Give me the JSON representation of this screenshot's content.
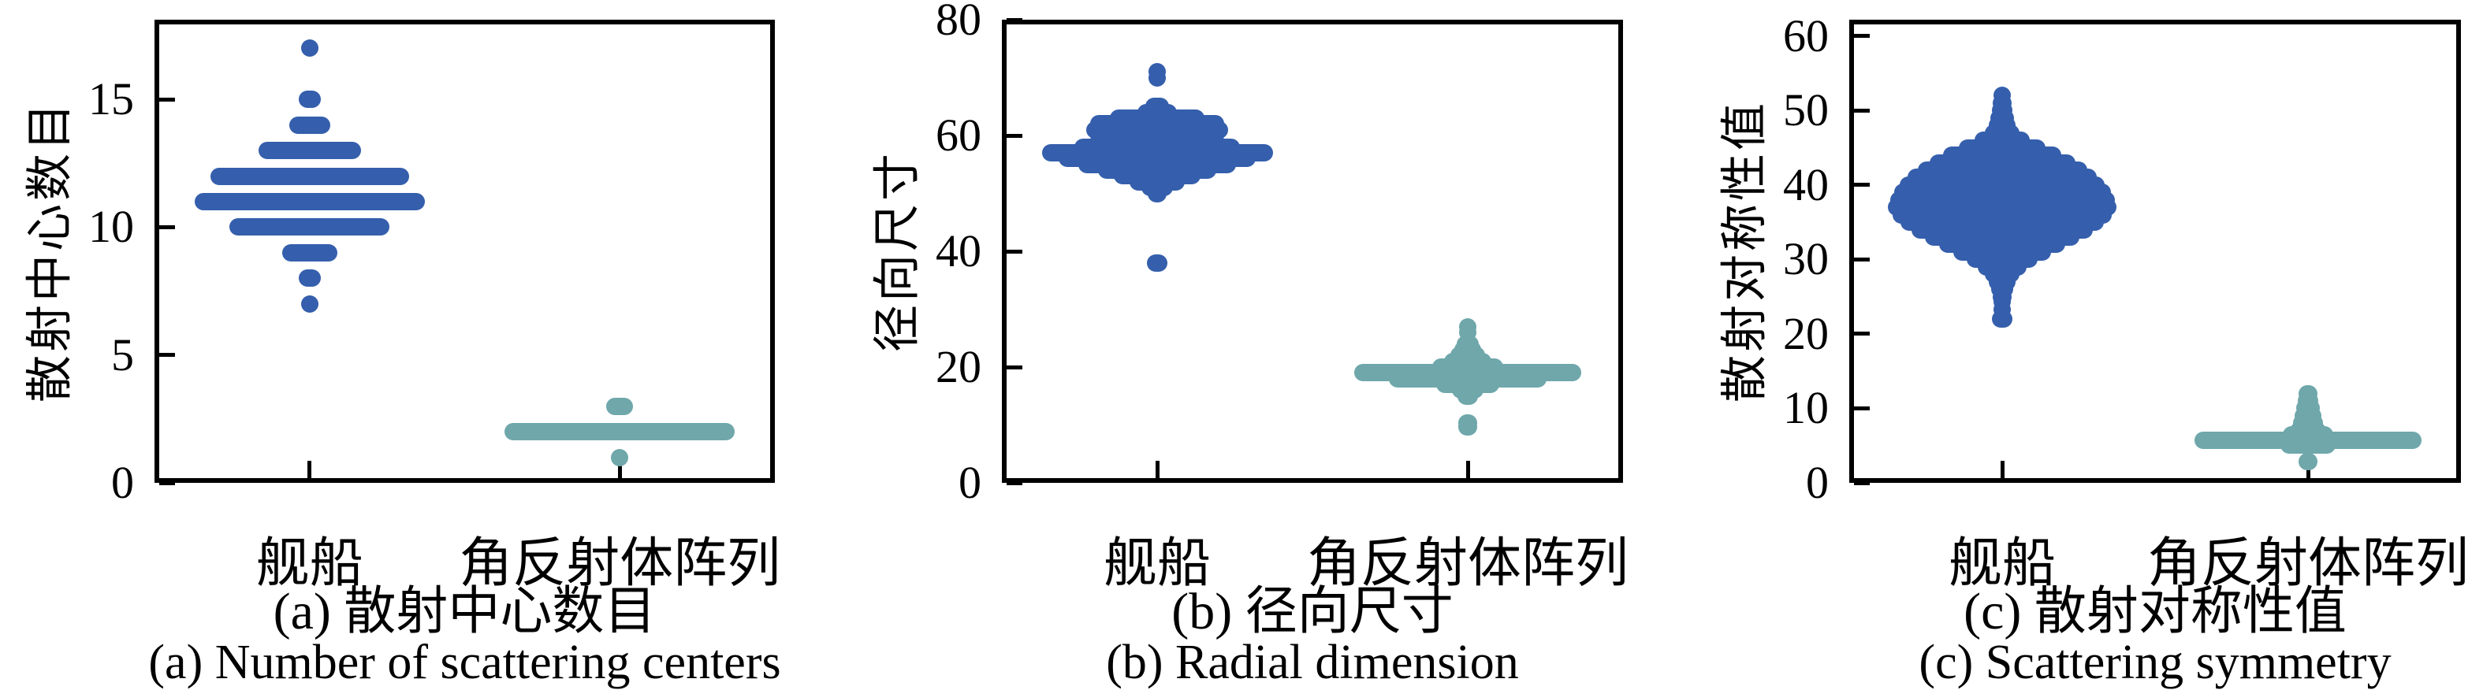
{
  "figure": {
    "background": "#ffffff",
    "axis_color": "#000000",
    "palette": {
      "ship_blue": "#355FAC",
      "reflector_teal": "#6FA7AB"
    }
  },
  "chart_data": [
    {
      "type": "swarm",
      "panel_label": "a",
      "title": "",
      "ylabel": "散射中心数目",
      "xlabel": "",
      "yticks": [
        0,
        5,
        10,
        15
      ],
      "ylim": [
        0,
        18.12
      ],
      "grid": false,
      "legend": "none",
      "categories": [
        "舰船",
        "角反射体阵列"
      ],
      "caption_zh": "(a) 散射中心数目",
      "caption_en": "(a) Number of scattering centers",
      "series": [
        {
          "name": "舰船",
          "color": "#355FAC",
          "note": "discrete integer counts; profile = [value, rendered_row_width_px]",
          "profile": [
            [
              17,
              22
            ],
            [
              15,
              28
            ],
            [
              14,
              52
            ],
            [
              13,
              130
            ],
            [
              12,
              252
            ],
            [
              11,
              292
            ],
            [
              10,
              203
            ],
            [
              9,
              70
            ],
            [
              8,
              28
            ],
            [
              7,
              22
            ]
          ]
        },
        {
          "name": "角反射体阵列",
          "color": "#6FA7AB",
          "profile": [
            [
              3,
              34
            ],
            [
              2,
              292
            ],
            [
              1,
              22
            ]
          ]
        }
      ]
    },
    {
      "type": "swarm",
      "panel_label": "b",
      "title": "",
      "ylabel": "径向尺寸",
      "xlabel": "",
      "yticks": [
        0,
        20,
        40,
        60,
        80
      ],
      "ylim": [
        0,
        80
      ],
      "grid": false,
      "legend": "none",
      "categories": [
        "舰船",
        "角反射体阵列"
      ],
      "caption_zh": "(b) 径向尺寸",
      "caption_en": "(b) Radial dimension",
      "series": [
        {
          "name": "舰船",
          "color": "#355FAC",
          "profile": [
            [
              71,
              22
            ],
            [
              70,
              22
            ],
            [
              65,
              30
            ],
            [
              64,
              50
            ],
            [
              63,
              120
            ],
            [
              62,
              170
            ],
            [
              61,
              180
            ],
            [
              60,
              170
            ],
            [
              59,
              150
            ],
            [
              58,
              210
            ],
            [
              57,
              293
            ],
            [
              56,
              250
            ],
            [
              55,
              200
            ],
            [
              54,
              150
            ],
            [
              53,
              110
            ],
            [
              52,
              70
            ],
            [
              51,
              40
            ],
            [
              50,
              24
            ],
            [
              38,
              26
            ]
          ]
        },
        {
          "name": "角反射体阵列",
          "color": "#6FA7AB",
          "profile": [
            [
              27,
              22
            ],
            [
              26,
              22
            ],
            [
              24,
              28
            ],
            [
              23,
              34
            ],
            [
              22,
              44
            ],
            [
              21,
              60
            ],
            [
              20,
              90
            ],
            [
              19,
              288
            ],
            [
              18,
              200
            ],
            [
              17,
              80
            ],
            [
              16,
              40
            ],
            [
              15,
              26
            ],
            [
              10.3,
              24
            ],
            [
              9.7,
              24
            ]
          ]
        }
      ]
    },
    {
      "type": "swarm",
      "panel_label": "c",
      "title": "",
      "ylabel": "散射对称性值",
      "xlabel": "",
      "yticks": [
        0,
        10,
        20,
        30,
        40,
        50,
        60
      ],
      "ylim": [
        0,
        62.2
      ],
      "grid": false,
      "legend": "none",
      "categories": [
        "舰船",
        "角反射体阵列"
      ],
      "caption_zh": "(c) 散射对称性值",
      "caption_en": "(c) Scattering symmetry",
      "series": [
        {
          "name": "舰船",
          "color": "#355FAC",
          "profile": [
            [
              52,
              22
            ],
            [
              51,
              24
            ],
            [
              50,
              26
            ],
            [
              49,
              30
            ],
            [
              48,
              34
            ],
            [
              47,
              44
            ],
            [
              46,
              70
            ],
            [
              45,
              110
            ],
            [
              44,
              150
            ],
            [
              43,
              185
            ],
            [
              42,
              215
            ],
            [
              41,
              240
            ],
            [
              40,
              260
            ],
            [
              39,
              275
            ],
            [
              38,
              285
            ],
            [
              37,
              290
            ],
            [
              36,
              278
            ],
            [
              35,
              258
            ],
            [
              34,
              230
            ],
            [
              33,
              196
            ],
            [
              32,
              160
            ],
            [
              31,
              124
            ],
            [
              30,
              90
            ],
            [
              29,
              62
            ],
            [
              28,
              44
            ],
            [
              27,
              34
            ],
            [
              26,
              28
            ],
            [
              25,
              24
            ],
            [
              24.3,
              22
            ],
            [
              23.3,
              22
            ],
            [
              22,
              26
            ]
          ]
        },
        {
          "name": "角反射体阵列",
          "color": "#6FA7AB",
          "profile": [
            [
              12,
              24
            ],
            [
              11,
              26
            ],
            [
              10,
              30
            ],
            [
              9,
              34
            ],
            [
              8,
              38
            ],
            [
              7,
              46
            ],
            [
              6.5,
              64
            ],
            [
              5.7,
              288
            ],
            [
              5.1,
              70
            ],
            [
              2.9,
              24
            ]
          ]
        }
      ]
    }
  ]
}
